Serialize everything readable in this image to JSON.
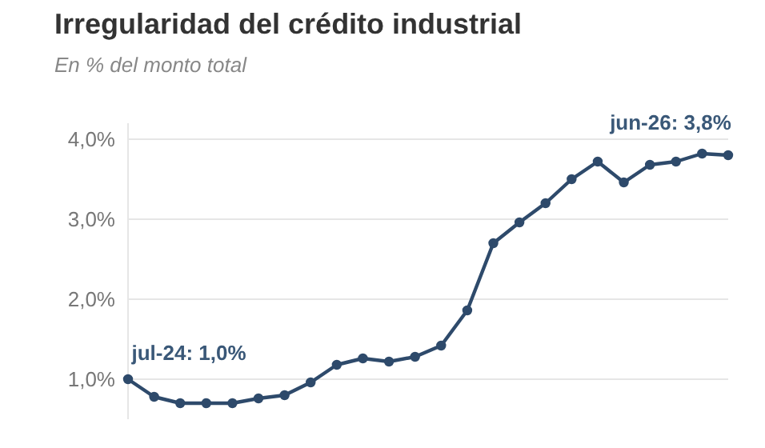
{
  "chart_data": {
    "type": "line",
    "title": "Irregularidad del crédito industrial",
    "subtitle": "En % del monto total",
    "categories": [
      null,
      null,
      null,
      null,
      null,
      null,
      null,
      null,
      null,
      null,
      null,
      null,
      null,
      null,
      null,
      null,
      null,
      null,
      null,
      null,
      null,
      null,
      null,
      null
    ],
    "series": [
      {
        "color": "#2e4a6b",
        "values": [
          1.0,
          0.78,
          0.7,
          0.7,
          0.7,
          0.76,
          0.8,
          0.96,
          1.18,
          1.26,
          1.22,
          1.28,
          1.42,
          1.86,
          2.7,
          2.96,
          3.2,
          3.5,
          3.72,
          3.46,
          3.68,
          3.72,
          3.82,
          3.8
        ]
      }
    ],
    "ylim": [
      0.5,
      4.2
    ],
    "yticks": [
      {
        "value": 1,
        "label": "1,0%"
      },
      {
        "value": 2,
        "label": "2,0%"
      },
      {
        "value": 3,
        "label": "3,0%"
      },
      {
        "value": 4,
        "label": "4,0%"
      }
    ],
    "grid": "y",
    "marker": "circle",
    "line_style": "solid",
    "tick_labels": "y",
    "annotations": [
      "jul-24: 1,0%",
      "jun-26: 3,8%"
    ]
  }
}
